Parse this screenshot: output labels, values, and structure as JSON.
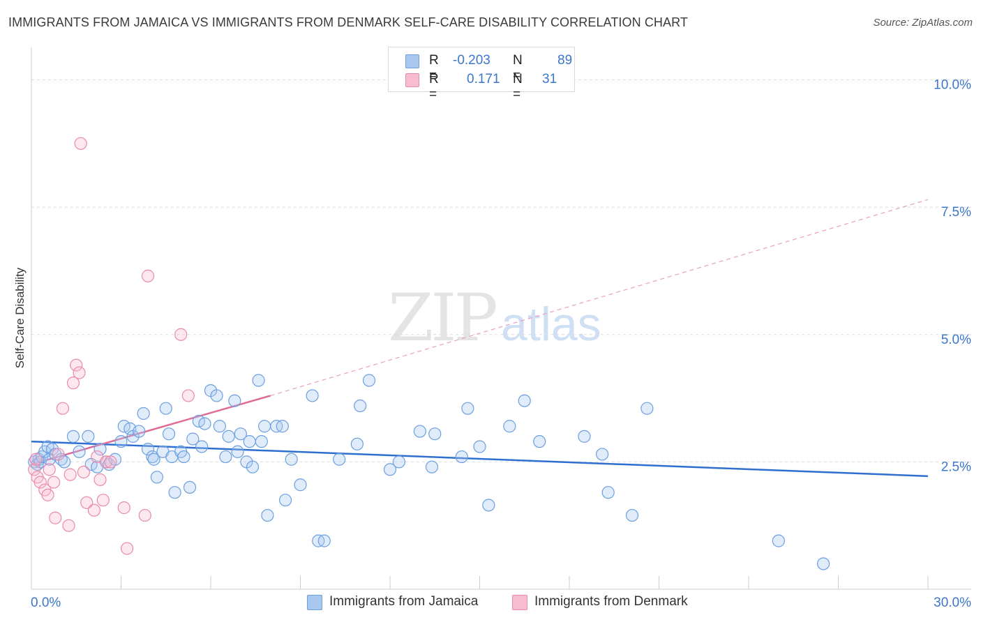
{
  "title": "IMMIGRANTS FROM JAMAICA VS IMMIGRANTS FROM DENMARK SELF-CARE DISABILITY CORRELATION CHART",
  "source": "Source: ZipAtlas.com",
  "watermark": {
    "zip": "ZIP",
    "atlas": "atlas"
  },
  "legend_top": {
    "rows": [
      {
        "r_label": "R =",
        "r_value": "-0.203",
        "n_label": "N =",
        "n_value": "89",
        "color": "#a8c8f0",
        "stroke": "#6a9fe0"
      },
      {
        "r_label": "R =",
        "r_value": "0.171",
        "n_label": "N =",
        "n_value": "31",
        "color": "#f8bcd0",
        "stroke": "#ea8aaa"
      }
    ]
  },
  "legend_bottom": [
    {
      "label": "Immigrants from Jamaica",
      "color": "#a8c8f0",
      "stroke": "#6a9fe0"
    },
    {
      "label": "Immigrants from Denmark",
      "color": "#f8bcd0",
      "stroke": "#ea8aaa"
    }
  ],
  "chart_data": {
    "type": "scatter",
    "title": "IMMIGRANTS FROM JAMAICA VS IMMIGRANTS FROM DENMARK SELF-CARE DISABILITY CORRELATION CHART",
    "xlabel": "",
    "ylabel": "Self-Care Disability",
    "xlim": [
      0,
      30
    ],
    "ylim": [
      0,
      10.5
    ],
    "x_tick_labels": [
      "0.0%",
      "30.0%"
    ],
    "y_ticks": [
      2.5,
      5.0,
      7.5,
      10.0
    ],
    "y_tick_labels": [
      "2.5%",
      "5.0%",
      "7.5%",
      "10.0%"
    ],
    "series": [
      {
        "name": "Immigrants from Jamaica",
        "color": "#6a9fe0",
        "fill": "rgba(168,200,240,0.35)",
        "trend": {
          "x0": 0,
          "y0": 2.9,
          "x1": 30,
          "y1": 2.22,
          "color": "#2e6fcf"
        },
        "points": [
          [
            0.1,
            2.5
          ],
          [
            0.2,
            2.45
          ],
          [
            0.25,
            2.55
          ],
          [
            0.3,
            2.5
          ],
          [
            0.35,
            2.6
          ],
          [
            0.45,
            2.7
          ],
          [
            0.55,
            2.8
          ],
          [
            0.6,
            2.55
          ],
          [
            0.7,
            2.75
          ],
          [
            0.8,
            2.65
          ],
          [
            1.0,
            2.55
          ],
          [
            1.1,
            2.5
          ],
          [
            1.4,
            3.0
          ],
          [
            1.6,
            2.7
          ],
          [
            1.9,
            3.0
          ],
          [
            2.0,
            2.45
          ],
          [
            2.2,
            2.4
          ],
          [
            2.3,
            2.75
          ],
          [
            2.5,
            2.5
          ],
          [
            2.6,
            2.45
          ],
          [
            2.8,
            2.55
          ],
          [
            3.0,
            2.9
          ],
          [
            3.1,
            3.2
          ],
          [
            3.3,
            3.15
          ],
          [
            3.4,
            3.0
          ],
          [
            3.6,
            3.1
          ],
          [
            3.75,
            3.45
          ],
          [
            3.9,
            2.75
          ],
          [
            4.05,
            2.6
          ],
          [
            4.1,
            2.55
          ],
          [
            4.2,
            2.2
          ],
          [
            4.4,
            2.7
          ],
          [
            4.5,
            3.55
          ],
          [
            4.6,
            3.05
          ],
          [
            4.7,
            2.6
          ],
          [
            4.8,
            1.9
          ],
          [
            5.0,
            2.7
          ],
          [
            5.1,
            2.6
          ],
          [
            5.3,
            2.0
          ],
          [
            5.4,
            2.95
          ],
          [
            5.6,
            3.3
          ],
          [
            5.7,
            2.8
          ],
          [
            5.8,
            3.25
          ],
          [
            6.0,
            3.9
          ],
          [
            6.2,
            3.8
          ],
          [
            6.3,
            3.2
          ],
          [
            6.5,
            2.6
          ],
          [
            6.6,
            3.0
          ],
          [
            6.8,
            3.7
          ],
          [
            6.9,
            2.7
          ],
          [
            7.0,
            3.05
          ],
          [
            7.2,
            2.5
          ],
          [
            7.3,
            2.9
          ],
          [
            7.4,
            2.4
          ],
          [
            7.6,
            4.1
          ],
          [
            7.7,
            2.9
          ],
          [
            7.8,
            3.2
          ],
          [
            7.9,
            1.45
          ],
          [
            8.2,
            3.2
          ],
          [
            8.4,
            3.2
          ],
          [
            8.5,
            1.75
          ],
          [
            8.7,
            2.55
          ],
          [
            9.0,
            2.05
          ],
          [
            9.4,
            3.8
          ],
          [
            9.6,
            0.95
          ],
          [
            9.8,
            0.95
          ],
          [
            10.3,
            2.55
          ],
          [
            10.9,
            2.85
          ],
          [
            11.0,
            3.6
          ],
          [
            11.3,
            4.1
          ],
          [
            12.0,
            2.35
          ],
          [
            12.3,
            2.5
          ],
          [
            13.0,
            3.1
          ],
          [
            13.4,
            2.4
          ],
          [
            13.5,
            3.05
          ],
          [
            14.4,
            2.6
          ],
          [
            14.6,
            3.55
          ],
          [
            15.0,
            2.8
          ],
          [
            15.3,
            1.65
          ],
          [
            16.0,
            3.2
          ],
          [
            16.5,
            3.7
          ],
          [
            17.0,
            2.9
          ],
          [
            18.5,
            3.0
          ],
          [
            19.1,
            2.65
          ],
          [
            19.3,
            1.9
          ],
          [
            20.1,
            1.45
          ],
          [
            20.6,
            3.55
          ],
          [
            25.0,
            0.95
          ],
          [
            26.5,
            0.5
          ]
        ]
      },
      {
        "name": "Immigrants from Denmark",
        "color": "#ea8aaa",
        "fill": "rgba(248,188,208,0.35)",
        "trend": {
          "x0": 0,
          "y0": 2.45,
          "x1": 8.0,
          "y1": 3.8,
          "color": "#e06a97"
        },
        "trend_extension": {
          "x0": 8.0,
          "y0": 3.8,
          "x1": 30,
          "y1": 7.65,
          "color": "#e9a0bb"
        },
        "points": [
          [
            0.1,
            2.35
          ],
          [
            0.15,
            2.55
          ],
          [
            0.2,
            2.2
          ],
          [
            0.3,
            2.1
          ],
          [
            0.45,
            1.95
          ],
          [
            0.55,
            1.85
          ],
          [
            0.6,
            2.35
          ],
          [
            0.75,
            2.1
          ],
          [
            0.8,
            1.4
          ],
          [
            0.9,
            2.65
          ],
          [
            1.05,
            3.55
          ],
          [
            1.25,
            1.25
          ],
          [
            1.3,
            2.25
          ],
          [
            1.4,
            4.05
          ],
          [
            1.5,
            4.4
          ],
          [
            1.6,
            4.25
          ],
          [
            1.75,
            2.3
          ],
          [
            1.85,
            1.7
          ],
          [
            2.1,
            1.55
          ],
          [
            2.2,
            2.6
          ],
          [
            2.3,
            2.15
          ],
          [
            2.4,
            1.75
          ],
          [
            2.5,
            2.5
          ],
          [
            2.65,
            2.5
          ],
          [
            3.1,
            1.6
          ],
          [
            3.2,
            0.8
          ],
          [
            3.8,
            1.45
          ],
          [
            3.9,
            6.15
          ],
          [
            5.0,
            5.0
          ],
          [
            5.25,
            3.8
          ],
          [
            1.65,
            8.75
          ]
        ]
      }
    ]
  }
}
